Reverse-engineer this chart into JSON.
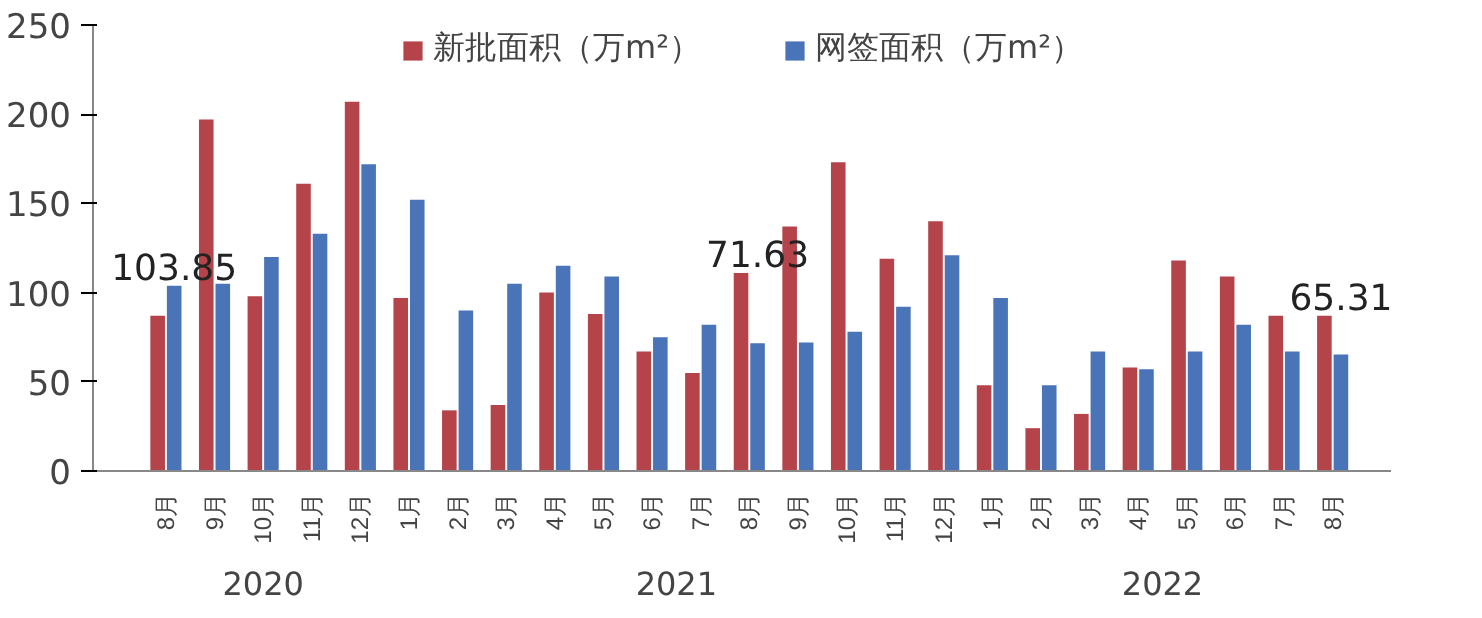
{
  "chart_data": {
    "type": "bar",
    "categories": [
      "8月",
      "9月",
      "10月",
      "11月",
      "12月",
      "1月",
      "2月",
      "3月",
      "4月",
      "5月",
      "6月",
      "7月",
      "8月",
      "9月",
      "10月",
      "11月",
      "12月",
      "1月",
      "2月",
      "3月",
      "4月",
      "5月",
      "6月",
      "7月",
      "8月"
    ],
    "series": [
      {
        "name": "新批面积（万m²）",
        "color": "#b5434a",
        "values": [
          87,
          197,
          98,
          161,
          207,
          97,
          34,
          37,
          100,
          88,
          67,
          55,
          111,
          137,
          173,
          119,
          140,
          48,
          24,
          32,
          58,
          118,
          109,
          87,
          87
        ]
      },
      {
        "name": "网签面积（万m²）",
        "color": "#4a74b8",
        "values": [
          103.85,
          105,
          120,
          133,
          172,
          152,
          90,
          105,
          115,
          109,
          75,
          82,
          71.63,
          72,
          78,
          92,
          121,
          97,
          48,
          67,
          57,
          67,
          82,
          67,
          65.31
        ],
        "value_labels": [
          "103.85",
          null,
          null,
          null,
          null,
          null,
          null,
          null,
          null,
          null,
          null,
          null,
          "71.63",
          null,
          null,
          null,
          null,
          null,
          null,
          null,
          null,
          null,
          null,
          null,
          "65.31"
        ]
      }
    ],
    "ylim": [
      0,
      250
    ],
    "yticks": [
      0,
      50,
      100,
      150,
      200,
      250
    ],
    "annotations": [
      "2020",
      "2021",
      "2022"
    ],
    "legend": "top",
    "grid": false
  }
}
